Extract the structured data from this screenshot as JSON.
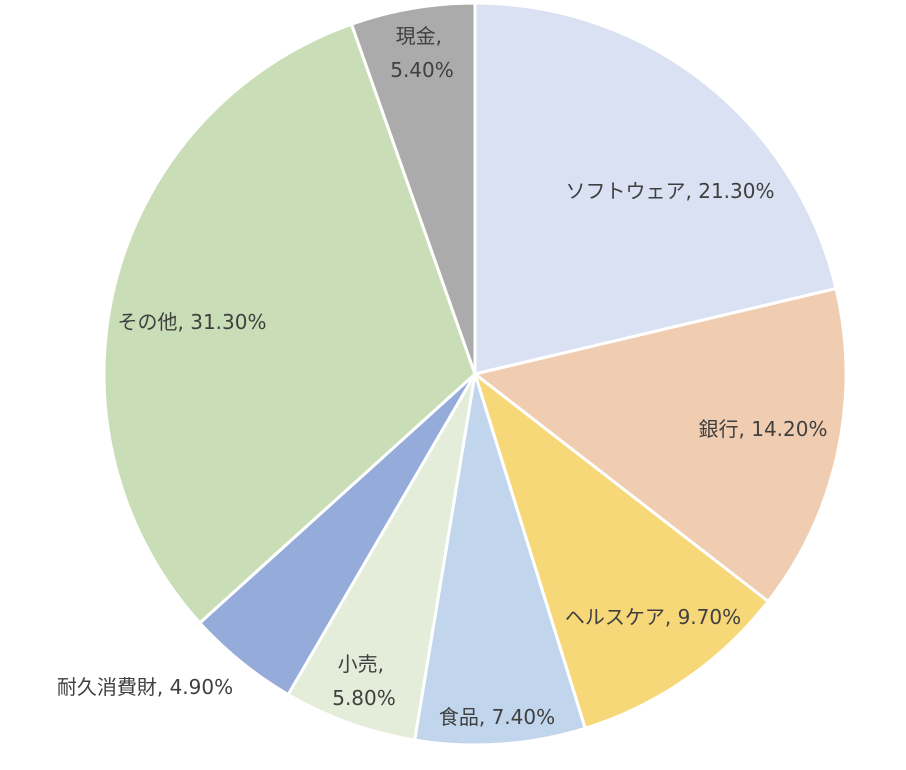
{
  "chart_data": {
    "type": "pie",
    "categories": [
      "ソフトウェア",
      "銀行",
      "ヘルスケア",
      "食品",
      "小売",
      "耐久消費財",
      "その他",
      "現金"
    ],
    "values": [
      21.3,
      14.2,
      9.7,
      7.4,
      5.8,
      4.9,
      31.3,
      5.4
    ],
    "value_labels": [
      "21.30%",
      "14.20%",
      "9.70%",
      "7.40%",
      "5.80%",
      "4.90%",
      "31.30%",
      "5.40%"
    ],
    "label_separator": ", ",
    "colors": [
      "#dae1f2",
      "#f0cdb0",
      "#f7d878",
      "#c1d5ec",
      "#e4ecda",
      "#95abd9",
      "#c9deb6",
      "#ababab"
    ]
  }
}
